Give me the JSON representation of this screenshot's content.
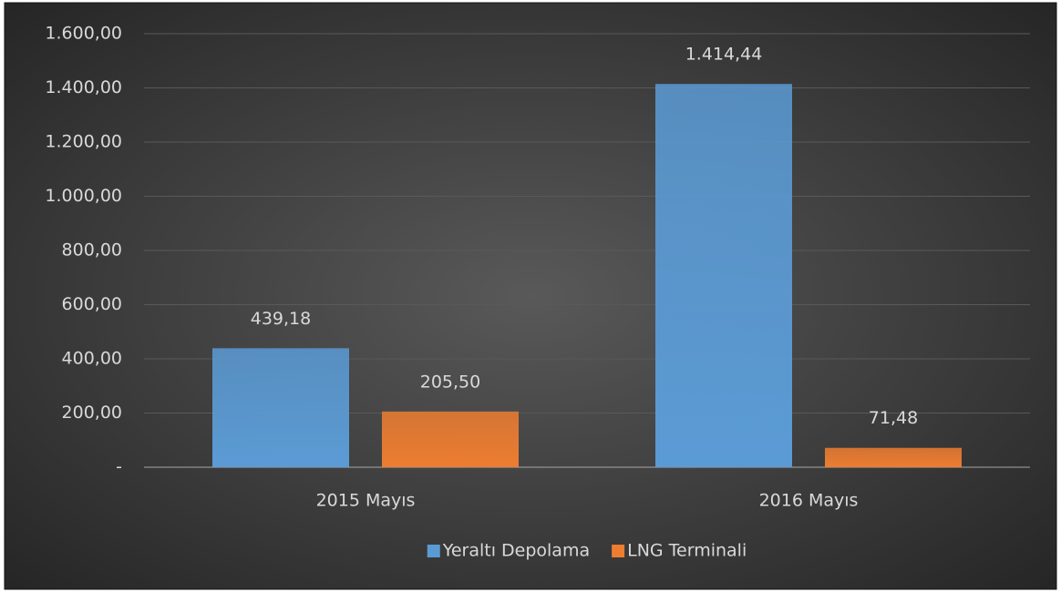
{
  "chart_data": {
    "type": "bar",
    "categories": [
      "2015 Mayıs",
      "2016 Mayıs"
    ],
    "series": [
      {
        "name": "Yeraltı Depolama",
        "color": "#5b9bd5",
        "values": [
          439.18,
          1414.44
        ],
        "value_labels": [
          "439,18",
          "1.414,44"
        ]
      },
      {
        "name": "LNG Terminali",
        "color": "#ed7d31",
        "values": [
          205.5,
          71.48
        ],
        "value_labels": [
          "205,50",
          "71,48"
        ]
      }
    ],
    "ylim": [
      0,
      1600
    ],
    "yticks": [
      {
        "value": 0,
        "label": "-"
      },
      {
        "value": 200,
        "label": "200,00"
      },
      {
        "value": 400,
        "label": "400,00"
      },
      {
        "value": 600,
        "label": "600,00"
      },
      {
        "value": 800,
        "label": "800,00"
      },
      {
        "value": 1000,
        "label": "1.000,00"
      },
      {
        "value": 1200,
        "label": "1.200,00"
      },
      {
        "value": 1400,
        "label": "1.400,00"
      },
      {
        "value": 1600,
        "label": "1.600,00"
      }
    ],
    "grid": true,
    "legend": "bottom"
  }
}
